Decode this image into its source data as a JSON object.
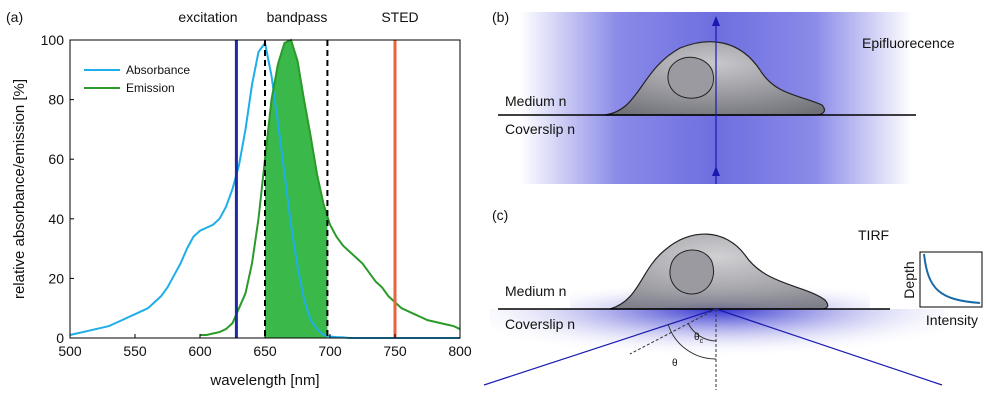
{
  "chart_data": {
    "type": "line",
    "panel": "(a)",
    "xlabel": "wavelength [nm]",
    "ylabel": "relative absorbance/emission [%]",
    "xlim": [
      500,
      800
    ],
    "ylim": [
      0,
      100
    ],
    "xticks": [
      500,
      550,
      600,
      650,
      700,
      750,
      800
    ],
    "yticks": [
      0,
      20,
      40,
      60,
      80,
      100
    ],
    "x": [
      500,
      505,
      510,
      515,
      520,
      525,
      530,
      535,
      540,
      545,
      550,
      555,
      560,
      565,
      570,
      575,
      580,
      585,
      590,
      595,
      600,
      605,
      610,
      615,
      620,
      625,
      630,
      635,
      640,
      645,
      650,
      655,
      660,
      665,
      670,
      675,
      680,
      685,
      690,
      695,
      700,
      705,
      710,
      715,
      720,
      725,
      730,
      735,
      740,
      745,
      750,
      755,
      760,
      765,
      770,
      775,
      780,
      785,
      790,
      795,
      800
    ],
    "series": [
      {
        "name": "Absorbance",
        "color": "#1eaee8",
        "values": [
          1,
          1.5,
          2,
          2.5,
          3,
          3.5,
          4,
          5,
          6,
          7,
          8,
          9,
          10,
          12,
          14,
          17,
          21,
          25,
          30,
          34,
          36,
          37,
          38,
          40,
          44,
          50,
          58,
          70,
          85,
          96,
          99,
          88,
          72,
          55,
          38,
          24,
          13,
          6,
          3,
          1,
          0.5,
          0.3,
          0.2,
          0,
          0,
          0,
          0,
          0,
          0,
          0,
          0,
          0,
          0,
          0,
          0,
          0,
          0,
          0,
          0,
          0,
          0
        ]
      },
      {
        "name": "Emission",
        "color": "#2a9a2a",
        "fill_between": [
          650,
          698
        ],
        "fill_color": "#3ab84a",
        "values": [
          null,
          null,
          null,
          null,
          null,
          null,
          null,
          null,
          null,
          null,
          null,
          null,
          null,
          null,
          null,
          null,
          null,
          null,
          null,
          null,
          1,
          1,
          1.5,
          2,
          3,
          5,
          10,
          15,
          25,
          40,
          60,
          80,
          92,
          99,
          100,
          93,
          80,
          68,
          55,
          45,
          38,
          34,
          31,
          29,
          27,
          25,
          22,
          19,
          17,
          14,
          12,
          10,
          9,
          8,
          7,
          6,
          5.5,
          5,
          4.5,
          4,
          3
        ]
      }
    ],
    "vlines": [
      {
        "x": 628,
        "color": "#1c2aa8",
        "dashed": false
      },
      {
        "x": 650,
        "color": "#000000",
        "dashed": true
      },
      {
        "x": 698,
        "color": "#000000",
        "dashed": true
      },
      {
        "x": 750,
        "color": "#e8643c",
        "dashed": false
      }
    ],
    "annotations": [
      "excitation",
      "bandpass",
      "STED"
    ],
    "legend": "upper left"
  },
  "diagrams": {
    "b": {
      "panel": "(b)",
      "mode": "Epifluorecence",
      "medium": "Medium n",
      "coverslip": "Coverslip n"
    },
    "c": {
      "panel": "(c)",
      "mode": "TIRF",
      "medium": "Medium n",
      "coverslip": "Coverslip n",
      "inset_ylabel": "Depth",
      "inset_xlabel": "Intensity",
      "critical_angle": "θ",
      "critical_sub": "c",
      "angle": "θ"
    }
  }
}
